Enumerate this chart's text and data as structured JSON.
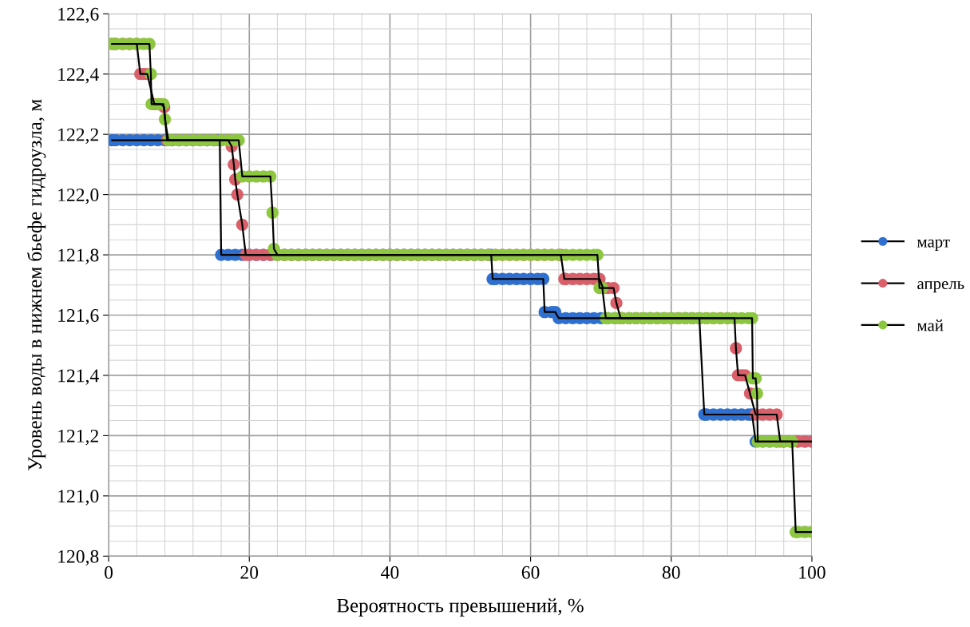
{
  "chart_data": {
    "type": "line",
    "xlabel": "Вероятность превышений, %",
    "ylabel": "Уровень воды в нижнем бьефе гидроузла, м",
    "xlim": [
      0,
      100
    ],
    "xticks": [
      0,
      20,
      40,
      60,
      80,
      100
    ],
    "ylim": [
      120.8,
      122.6
    ],
    "yticks": [
      {
        "value": 120.8,
        "label": "120,8"
      },
      {
        "value": 121.0,
        "label": "121,0"
      },
      {
        "value": 121.2,
        "label": "121,2"
      },
      {
        "value": 121.4,
        "label": "121,4"
      },
      {
        "value": 121.6,
        "label": "121,6"
      },
      {
        "value": 121.8,
        "label": "121,8"
      },
      {
        "value": 122.0,
        "label": "122,0"
      },
      {
        "value": 122.2,
        "label": "122,2"
      },
      {
        "value": 122.4,
        "label": "122,4"
      },
      {
        "value": 122.6,
        "label": "122,6"
      }
    ],
    "grid": true,
    "legend": "right",
    "marker": "circle",
    "line_style": "solid",
    "series": [
      {
        "name": "март",
        "color": "#2e6fd0",
        "x": [
          0.5,
          1,
          2,
          3,
          4,
          5,
          6,
          7,
          8,
          9,
          10,
          11,
          12,
          13,
          14,
          15,
          15.8,
          16,
          17,
          18,
          19,
          20,
          21,
          22,
          23,
          24,
          25,
          26,
          27,
          28,
          29,
          30,
          31,
          32,
          33,
          34,
          35,
          36,
          37,
          38,
          39,
          40,
          41,
          42,
          43,
          44,
          45,
          46,
          47,
          48,
          49,
          50,
          51,
          52,
          53,
          54,
          54.4,
          54.6,
          55,
          56,
          57,
          58,
          59,
          60,
          61,
          61.8,
          62,
          63,
          63.5,
          64,
          65,
          66,
          67,
          68,
          69,
          70,
          71,
          72,
          73,
          74,
          75,
          76,
          77,
          78,
          79,
          80,
          81,
          82,
          83,
          84,
          84.7,
          85,
          86,
          87,
          88,
          89,
          90,
          91,
          91.5,
          92,
          93,
          94,
          95,
          96,
          97,
          98,
          99,
          100
        ],
        "values": [
          122.18,
          122.18,
          122.18,
          122.18,
          122.18,
          122.18,
          122.18,
          122.18,
          122.18,
          122.18,
          122.18,
          122.18,
          122.18,
          122.18,
          122.18,
          122.18,
          122.18,
          121.8,
          121.8,
          121.8,
          121.8,
          121.8,
          121.8,
          121.8,
          121.8,
          121.8,
          121.8,
          121.8,
          121.8,
          121.8,
          121.8,
          121.8,
          121.8,
          121.8,
          121.8,
          121.8,
          121.8,
          121.8,
          121.8,
          121.8,
          121.8,
          121.8,
          121.8,
          121.8,
          121.8,
          121.8,
          121.8,
          121.8,
          121.8,
          121.8,
          121.8,
          121.8,
          121.8,
          121.8,
          121.8,
          121.8,
          121.8,
          121.72,
          121.72,
          121.72,
          121.72,
          121.72,
          121.72,
          121.72,
          121.72,
          121.72,
          121.61,
          121.61,
          121.61,
          121.59,
          121.59,
          121.59,
          121.59,
          121.59,
          121.59,
          121.59,
          121.59,
          121.59,
          121.59,
          121.59,
          121.59,
          121.59,
          121.59,
          121.59,
          121.59,
          121.59,
          121.59,
          121.59,
          121.59,
          121.59,
          121.27,
          121.27,
          121.27,
          121.27,
          121.27,
          121.27,
          121.27,
          121.27,
          121.27,
          121.18,
          121.18,
          121.18,
          121.18,
          121.18,
          121.18,
          121.18,
          121.18,
          121.18
        ]
      },
      {
        "name": "апрель",
        "color": "#d9606a",
        "x": [
          0.5,
          1,
          2,
          3,
          4,
          4.5,
          5,
          5.5,
          6.5,
          7,
          7.5,
          7.9,
          8.3,
          9,
          10,
          11,
          12,
          13,
          14,
          15,
          16,
          17,
          17.5,
          17.8,
          18,
          18.3,
          19,
          19.5,
          20,
          21,
          22,
          23,
          24,
          25,
          26,
          27,
          28,
          29,
          30,
          31,
          32,
          33,
          34,
          35,
          36,
          37,
          38,
          39,
          40,
          41,
          42,
          43,
          44,
          45,
          46,
          47,
          48,
          49,
          50,
          51,
          52,
          53,
          54,
          55,
          56,
          57,
          58,
          59,
          60,
          61,
          62,
          63,
          64,
          64.3,
          64.8,
          65,
          66,
          67,
          68,
          69,
          69.8,
          70.3,
          71,
          71.8,
          72.2,
          72.8,
          73,
          74,
          75,
          76,
          77,
          78,
          79,
          80,
          81,
          82,
          83,
          84,
          85,
          86,
          87,
          88,
          89,
          89.2,
          89.5,
          90,
          90.5,
          91.2,
          92,
          93,
          94,
          95,
          95.5,
          96,
          97,
          98,
          99,
          100
        ],
        "values": [
          122.5,
          122.5,
          122.5,
          122.5,
          122.5,
          122.4,
          122.4,
          122.4,
          122.3,
          122.3,
          122.3,
          122.29,
          122.18,
          122.18,
          122.18,
          122.18,
          122.18,
          122.18,
          122.18,
          122.18,
          122.18,
          122.18,
          122.16,
          122.1,
          122.05,
          122.0,
          121.9,
          121.8,
          121.8,
          121.8,
          121.8,
          121.8,
          121.8,
          121.8,
          121.8,
          121.8,
          121.8,
          121.8,
          121.8,
          121.8,
          121.8,
          121.8,
          121.8,
          121.8,
          121.8,
          121.8,
          121.8,
          121.8,
          121.8,
          121.8,
          121.8,
          121.8,
          121.8,
          121.8,
          121.8,
          121.8,
          121.8,
          121.8,
          121.8,
          121.8,
          121.8,
          121.8,
          121.8,
          121.8,
          121.8,
          121.8,
          121.8,
          121.8,
          121.8,
          121.8,
          121.8,
          121.8,
          121.8,
          121.8,
          121.72,
          121.72,
          121.72,
          121.72,
          121.72,
          121.72,
          121.72,
          121.69,
          121.69,
          121.69,
          121.64,
          121.59,
          121.59,
          121.59,
          121.59,
          121.59,
          121.59,
          121.59,
          121.59,
          121.59,
          121.59,
          121.59,
          121.59,
          121.59,
          121.59,
          121.59,
          121.59,
          121.59,
          121.59,
          121.49,
          121.4,
          121.4,
          121.4,
          121.34,
          121.27,
          121.27,
          121.27,
          121.27,
          121.18,
          121.18,
          121.18,
          121.18,
          121.18,
          121.18
        ]
      },
      {
        "name": "май",
        "color": "#8dc63f",
        "x": [
          0.5,
          1,
          2,
          3,
          4,
          5,
          5.8,
          6,
          6.1,
          7,
          7.8,
          8,
          8.5,
          9,
          10,
          11,
          12,
          13,
          14,
          15,
          16,
          17,
          18,
          18.5,
          19,
          20,
          21,
          22,
          23,
          23.3,
          23.5,
          24,
          25,
          26,
          27,
          28,
          29,
          30,
          31,
          32,
          33,
          34,
          35,
          36,
          37,
          38,
          39,
          40,
          41,
          42,
          43,
          44,
          45,
          46,
          47,
          48,
          49,
          50,
          51,
          52,
          53,
          54,
          55,
          56,
          57,
          58,
          59,
          60,
          61,
          62,
          63,
          64,
          65,
          66,
          67,
          68,
          69,
          69.5,
          69.8,
          70.2,
          70.7,
          71,
          72,
          73,
          74,
          75,
          76,
          77,
          78,
          79,
          80,
          81,
          82,
          83,
          84,
          85,
          86,
          87,
          88,
          89,
          90,
          91,
          91.5,
          91.6,
          92,
          92.2,
          92.3,
          93,
          94,
          95,
          96,
          97,
          97.2,
          97.7,
          98,
          99,
          100
        ],
        "values": [
          122.5,
          122.5,
          122.5,
          122.5,
          122.5,
          122.5,
          122.5,
          122.4,
          122.3,
          122.3,
          122.3,
          122.25,
          122.18,
          122.18,
          122.18,
          122.18,
          122.18,
          122.18,
          122.18,
          122.18,
          122.18,
          122.18,
          122.18,
          122.18,
          122.06,
          122.06,
          122.06,
          122.06,
          122.06,
          121.94,
          121.82,
          121.8,
          121.8,
          121.8,
          121.8,
          121.8,
          121.8,
          121.8,
          121.8,
          121.8,
          121.8,
          121.8,
          121.8,
          121.8,
          121.8,
          121.8,
          121.8,
          121.8,
          121.8,
          121.8,
          121.8,
          121.8,
          121.8,
          121.8,
          121.8,
          121.8,
          121.8,
          121.8,
          121.8,
          121.8,
          121.8,
          121.8,
          121.8,
          121.8,
          121.8,
          121.8,
          121.8,
          121.8,
          121.8,
          121.8,
          121.8,
          121.8,
          121.8,
          121.8,
          121.8,
          121.8,
          121.8,
          121.8,
          121.69,
          121.69,
          121.59,
          121.59,
          121.59,
          121.59,
          121.59,
          121.59,
          121.59,
          121.59,
          121.59,
          121.59,
          121.59,
          121.59,
          121.59,
          121.59,
          121.59,
          121.59,
          121.59,
          121.59,
          121.59,
          121.59,
          121.59,
          121.59,
          121.59,
          121.39,
          121.39,
          121.34,
          121.18,
          121.18,
          121.18,
          121.18,
          121.18,
          121.18,
          121.18,
          120.88,
          120.88,
          120.88,
          120.88
        ]
      }
    ]
  }
}
